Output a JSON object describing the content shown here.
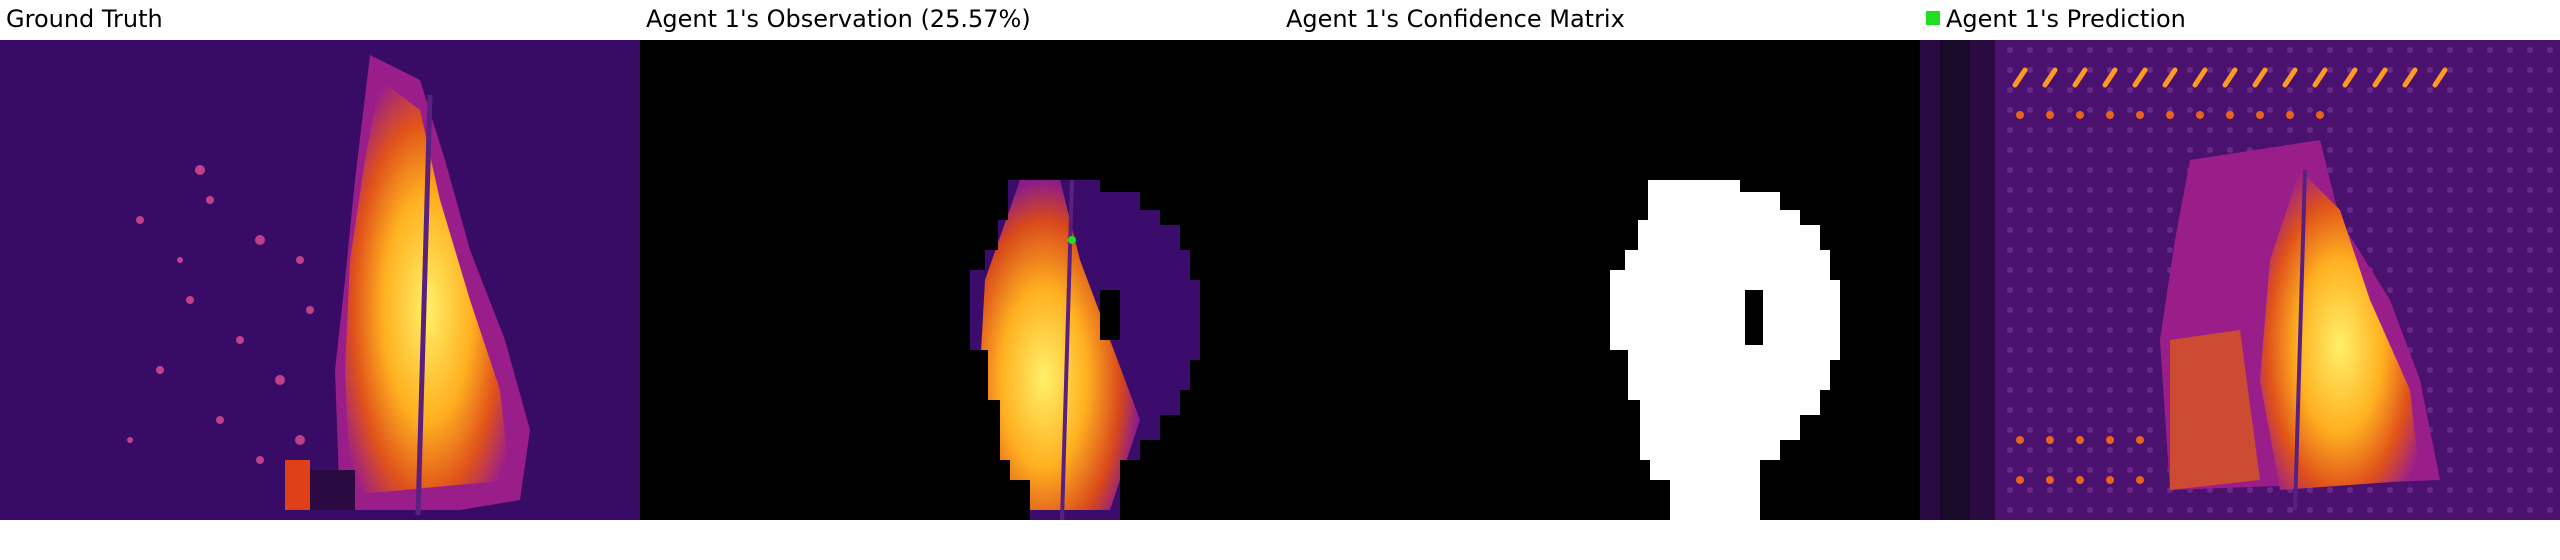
{
  "panels": [
    {
      "title": "Ground Truth"
    },
    {
      "title": "Agent 1's Observation (25.57%)"
    },
    {
      "title": "Agent 1's Confidence Matrix"
    },
    {
      "title": "Agent 1's Prediction"
    }
  ],
  "legend": {
    "color": "#22dd22"
  },
  "colors": {
    "background_cool": "#3a0a6a",
    "mid_purple": "#7a1aa0",
    "hot_orange": "#f08a10",
    "hot_yellow": "#ffd23a",
    "mask_white": "#ffffff",
    "mask_black": "#000000"
  }
}
